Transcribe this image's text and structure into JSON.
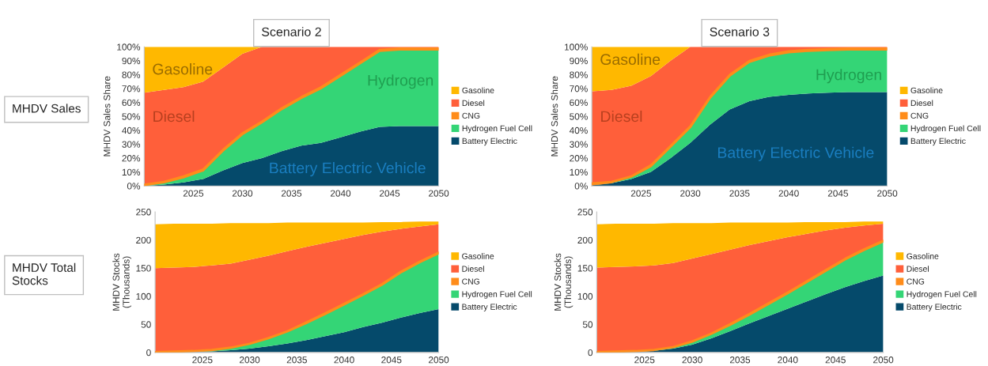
{
  "chart_data": [
    {
      "type": "area",
      "stacked": true,
      "title": "Scenario 2",
      "ylabel": "MHDV Sales Share",
      "legend": "right",
      "grid": false,
      "annotations": [
        "MHDV Sales",
        "Gasoline",
        "Diesel",
        "Hydrogen",
        "Battery Electric Vehicle"
      ],
      "x": [
        2020,
        2022,
        2024,
        2026,
        2028,
        2030,
        2032,
        2034,
        2036,
        2038,
        2040,
        2042,
        2044,
        2046,
        2048,
        2050
      ],
      "xlim": [
        2020,
        2050
      ],
      "xticks": [
        2025,
        2030,
        2035,
        2040,
        2045,
        2050
      ],
      "ylim": [
        0,
        100
      ],
      "yticks": [
        {
          "value": 0,
          "label": "0%"
        },
        {
          "value": 10,
          "label": "10%"
        },
        {
          "value": 20,
          "label": "20%"
        },
        {
          "value": 30,
          "label": "30%"
        },
        {
          "value": 40,
          "label": "40%"
        },
        {
          "value": 50,
          "label": "50%"
        },
        {
          "value": 60,
          "label": "60%"
        },
        {
          "value": 70,
          "label": "70%"
        },
        {
          "value": 80,
          "label": "80%"
        },
        {
          "value": 90,
          "label": "90%"
        },
        {
          "value": 100,
          "label": "100%"
        }
      ],
      "series": [
        {
          "name": "Battery Electric",
          "color": "#054a6b",
          "values": [
            0,
            1,
            2.5,
            5,
            11,
            16.5,
            20,
            25,
            29,
            31,
            35,
            39,
            42.5,
            43,
            43,
            43
          ]
        },
        {
          "name": "Hydrogen Fuel Cell",
          "color": "#34d576",
          "values": [
            0.5,
            1.5,
            3.5,
            6,
            14,
            20.5,
            25.5,
            30,
            34,
            39,
            44,
            49,
            54.5,
            55,
            55,
            55
          ]
        },
        {
          "name": "CNG",
          "color": "#ff8c1a",
          "values": [
            0.5,
            0.5,
            1,
            1,
            1,
            1,
            1,
            1,
            1,
            1,
            1,
            1,
            1,
            1,
            1,
            1
          ]
        },
        {
          "name": "Diesel",
          "color": "#ff5f3a",
          "values": [
            66,
            66,
            64,
            63,
            59,
            57,
            53.5,
            44,
            36,
            29,
            20,
            11,
            2,
            1,
            1,
            1
          ]
        },
        {
          "name": "Gasoline",
          "color": "#ffb800",
          "values": [
            33,
            31,
            29,
            25,
            15,
            5,
            0,
            0,
            0,
            0,
            0,
            0,
            0,
            0,
            0,
            0
          ]
        }
      ]
    },
    {
      "type": "area",
      "stacked": true,
      "title": "Scenario 3",
      "ylabel": "MHDV Sales Share",
      "legend": "right",
      "grid": false,
      "annotations": [
        "Gasoline",
        "Diesel",
        "Hydrogen",
        "Battery Electric Vehicle"
      ],
      "x": [
        2020,
        2022,
        2024,
        2026,
        2028,
        2030,
        2032,
        2034,
        2036,
        2038,
        2040,
        2042,
        2044,
        2046,
        2048,
        2050
      ],
      "xlim": [
        2020,
        2050
      ],
      "xticks": [
        2025,
        2030,
        2035,
        2040,
        2045,
        2050
      ],
      "ylim": [
        0,
        100
      ],
      "yticks": [
        {
          "value": 0,
          "label": "0%"
        },
        {
          "value": 10,
          "label": "10%"
        },
        {
          "value": 20,
          "label": "20%"
        },
        {
          "value": 30,
          "label": "30%"
        },
        {
          "value": 40,
          "label": "40%"
        },
        {
          "value": 50,
          "label": "50%"
        },
        {
          "value": 60,
          "label": "60%"
        },
        {
          "value": 70,
          "label": "70%"
        },
        {
          "value": 80,
          "label": "80%"
        },
        {
          "value": 90,
          "label": "90%"
        },
        {
          "value": 100,
          "label": "100%"
        }
      ],
      "series": [
        {
          "name": "Battery Electric",
          "color": "#054a6b",
          "values": [
            0.5,
            2,
            5,
            10,
            20,
            31,
            44,
            55,
            61,
            64,
            65.5,
            66.5,
            67,
            67.5,
            67.5,
            67.5
          ]
        },
        {
          "name": "Hydrogen Fuel Cell",
          "color": "#34d576",
          "values": [
            0.5,
            0.5,
            1.5,
            4,
            8,
            11,
            19,
            24,
            28,
            29.5,
            30.5,
            30.5,
            30.5,
            30.5,
            30.5,
            30.5
          ]
        },
        {
          "name": "CNG",
          "color": "#ff8c1a",
          "values": [
            1,
            0.5,
            0.5,
            1,
            1,
            1,
            1,
            1,
            1,
            1,
            1,
            1,
            1,
            1,
            1,
            1
          ]
        },
        {
          "name": "Diesel",
          "color": "#ff5f3a",
          "values": [
            66,
            66,
            65,
            64,
            61,
            57,
            36,
            20,
            10,
            5.5,
            3,
            2,
            1.5,
            1,
            1,
            1
          ]
        },
        {
          "name": "Gasoline",
          "color": "#ffb800",
          "values": [
            32,
            31,
            28,
            21,
            10,
            0,
            0,
            0,
            0,
            0,
            0,
            0,
            0,
            0,
            0,
            0
          ]
        }
      ]
    },
    {
      "type": "area",
      "stacked": true,
      "ylabel": "MHDV Stocks\n(Thousands)",
      "legend": "right",
      "grid": false,
      "annotations": [
        "MHDV Total Stocks"
      ],
      "x": [
        2020,
        2022,
        2024,
        2026,
        2028,
        2030,
        2032,
        2034,
        2036,
        2038,
        2040,
        2042,
        2044,
        2046,
        2048,
        2050
      ],
      "xlim": [
        2020,
        2050
      ],
      "xticks": [
        2025,
        2030,
        2035,
        2040,
        2045,
        2050
      ],
      "ylim": [
        0,
        250
      ],
      "yticks": [
        0,
        50,
        100,
        150,
        200,
        250
      ],
      "series": [
        {
          "name": "Battery Electric",
          "color": "#054a6b",
          "values": [
            0,
            0,
            1,
            2,
            4,
            7,
            11,
            16,
            22,
            29,
            36,
            45,
            53,
            62,
            70,
            77
          ]
        },
        {
          "name": "Hydrogen Fuel Cell",
          "color": "#34d576",
          "values": [
            0,
            1,
            1,
            2,
            4,
            8,
            14,
            21,
            30,
            39,
            49,
            57,
            67,
            80,
            90,
            99
          ]
        },
        {
          "name": "CNG",
          "color": "#ff8c1a",
          "values": [
            1,
            1,
            1,
            1,
            1,
            1,
            1,
            1,
            2,
            2,
            2,
            2,
            2,
            2,
            2,
            2
          ]
        },
        {
          "name": "Diesel",
          "color": "#ff5f3a",
          "values": [
            149,
            149,
            149,
            150,
            149,
            149,
            146,
            142,
            134,
            125,
            115,
            105,
            93,
            76,
            62,
            50
          ]
        },
        {
          "name": "Gasoline",
          "color": "#ffb800",
          "values": [
            78,
            78,
            77,
            74,
            72,
            65,
            58,
            51,
            43,
            36,
            29,
            22,
            17,
            12,
            9,
            5
          ]
        }
      ]
    },
    {
      "type": "area",
      "stacked": true,
      "ylabel": "MHDV Stocks\n(Thousands)",
      "legend": "right",
      "grid": false,
      "x": [
        2020,
        2022,
        2024,
        2026,
        2028,
        2030,
        2032,
        2034,
        2036,
        2038,
        2040,
        2042,
        2044,
        2046,
        2048,
        2050
      ],
      "xlim": [
        2020,
        2050
      ],
      "xticks": [
        2025,
        2030,
        2035,
        2040,
        2045,
        2050
      ],
      "ylim": [
        0,
        250
      ],
      "yticks": [
        0,
        50,
        100,
        150,
        200,
        250
      ],
      "series": [
        {
          "name": "Battery Electric",
          "color": "#054a6b",
          "values": [
            0,
            0,
            1,
            3,
            7,
            14,
            25,
            38,
            52,
            65,
            78,
            91,
            104,
            116,
            127,
            137
          ]
        },
        {
          "name": "Hydrogen Fuel Cell",
          "color": "#34d576",
          "values": [
            0,
            1,
            1,
            1,
            2,
            5,
            8,
            11,
            15,
            21,
            27,
            34,
            41,
            49,
            55,
            60
          ]
        },
        {
          "name": "CNG",
          "color": "#ff8c1a",
          "values": [
            1,
            1,
            1,
            1,
            1,
            1,
            1,
            2,
            2,
            2,
            2,
            2,
            2,
            2,
            2,
            2
          ]
        },
        {
          "name": "Diesel",
          "color": "#ff5f3a",
          "values": [
            150,
            150,
            150,
            150,
            149,
            147,
            141,
            132,
            122,
            110,
            98,
            84,
            70,
            55,
            42,
            30
          ]
        },
        {
          "name": "Gasoline",
          "color": "#ffb800",
          "values": [
            77,
            77,
            76,
            74,
            71,
            63,
            55,
            48,
            40,
            33,
            26,
            21,
            15,
            10,
            7,
            4
          ]
        }
      ]
    }
  ]
}
